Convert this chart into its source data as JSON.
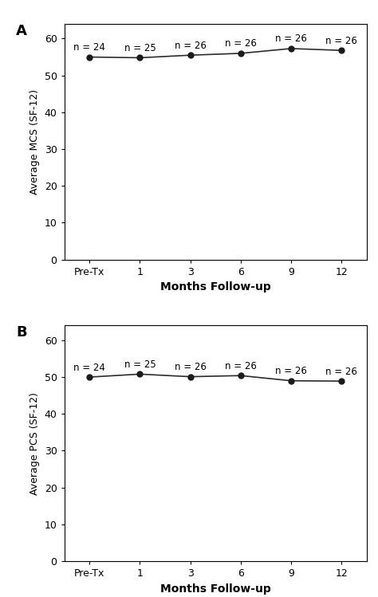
{
  "panel_A": {
    "label": "A",
    "ylabel": "Average MCS (SF-12)",
    "xlabel": "Months Follow-up",
    "x_labels": [
      "Pre-Tx",
      "1",
      "3",
      "6",
      "9",
      "12"
    ],
    "y_values": [
      55.0,
      54.8,
      55.5,
      56.0,
      57.3,
      56.8
    ],
    "n_labels": [
      "n = 24",
      "n = 25",
      "n = 26",
      "n = 26",
      "n = 26",
      "n = 26"
    ],
    "ylim": [
      0,
      64
    ],
    "yticks": [
      0,
      10,
      20,
      30,
      40,
      50,
      60
    ],
    "n_label_offsets_y": [
      1.2,
      1.2,
      1.2,
      1.2,
      1.2,
      1.2
    ]
  },
  "panel_B": {
    "label": "B",
    "ylabel": "Average PCS (SF-12)",
    "xlabel": "Months Follow-up",
    "x_labels": [
      "Pre-Tx",
      "1",
      "3",
      "6",
      "9",
      "12"
    ],
    "y_values": [
      50.0,
      50.8,
      50.1,
      50.4,
      49.0,
      48.9
    ],
    "n_labels": [
      "n = 24",
      "n = 25",
      "n = 26",
      "n = 26",
      "n = 26",
      "n = 26"
    ],
    "ylim": [
      0,
      64
    ],
    "yticks": [
      0,
      10,
      20,
      30,
      40,
      50,
      60
    ],
    "n_label_offsets_y": [
      1.2,
      1.2,
      1.2,
      1.2,
      1.2,
      1.2
    ]
  },
  "line_color": "#2c2c2c",
  "marker_color": "#1a1a1a",
  "bg_color": "#ffffff",
  "panel_bg": "#ffffff",
  "font_size_ylabel": 9,
  "font_size_xlabel": 10,
  "font_size_ticks": 9,
  "font_size_n": 8.5,
  "font_size_panel_label": 13,
  "marker_size": 5,
  "line_width": 1.2
}
